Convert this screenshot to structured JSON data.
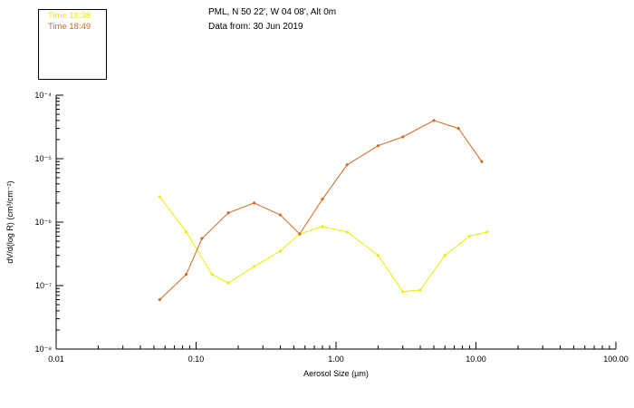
{
  "header": {
    "line1": "PML, N 50 22', W 04 08', Alt 0m",
    "line2": "Data from: 30 Jun 2019"
  },
  "legend": {
    "items": [
      {
        "label": "Time 18:38",
        "color": "#ecec00"
      },
      {
        "label": "Time 18:49",
        "color": "#d2691e"
      }
    ]
  },
  "chart_data": {
    "type": "line",
    "title": "",
    "xlabel": "Aerosol Size (μm)",
    "ylabel": "dV/d(log R) (cm³/cm⁻²)",
    "xscale": "log",
    "yscale": "log",
    "xlim": [
      0.01,
      100
    ],
    "ylim": [
      1e-08,
      0.0001
    ],
    "grid": false,
    "legend_position": "top-left-box",
    "xticks": [
      {
        "v": 0.01,
        "label": "0.01"
      },
      {
        "v": 0.1,
        "label": "0.10"
      },
      {
        "v": 1.0,
        "label": "1.00"
      },
      {
        "v": 10.0,
        "label": "10.00"
      },
      {
        "v": 100.0,
        "label": "100.00"
      }
    ],
    "yticks": [
      {
        "v": 0.0001,
        "label": "10⁻⁴"
      },
      {
        "v": 1e-05,
        "label": "10⁻⁵"
      },
      {
        "v": 1e-06,
        "label": "10⁻⁶"
      },
      {
        "v": 1e-07,
        "label": "10⁻⁷"
      },
      {
        "v": 1e-08,
        "label": "10⁻⁸"
      }
    ],
    "series": [
      {
        "name": "Time 18:38",
        "color": "#ecec00",
        "x": [
          0.055,
          0.085,
          0.13,
          0.17,
          0.26,
          0.4,
          0.55,
          0.8,
          1.2,
          2.0,
          3.0,
          4.0,
          6.0,
          9.0,
          12.0
        ],
        "y": [
          2.5e-06,
          7e-07,
          1.5e-07,
          1.1e-07,
          2e-07,
          3.5e-07,
          6.5e-07,
          8.5e-07,
          7e-07,
          3e-07,
          8e-08,
          8.5e-08,
          3e-07,
          6e-07,
          7e-07
        ]
      },
      {
        "name": "Time 18:49",
        "color": "#d2691e",
        "x": [
          0.055,
          0.085,
          0.11,
          0.17,
          0.26,
          0.4,
          0.55,
          0.8,
          1.2,
          2.0,
          3.0,
          5.0,
          7.5,
          11.0
        ],
        "y": [
          6e-08,
          1.5e-07,
          5.5e-07,
          1.4e-06,
          2e-06,
          1.3e-06,
          6.5e-07,
          2.3e-06,
          8e-06,
          1.6e-05,
          2.2e-05,
          4e-05,
          3e-05,
          9e-06
        ]
      }
    ]
  }
}
